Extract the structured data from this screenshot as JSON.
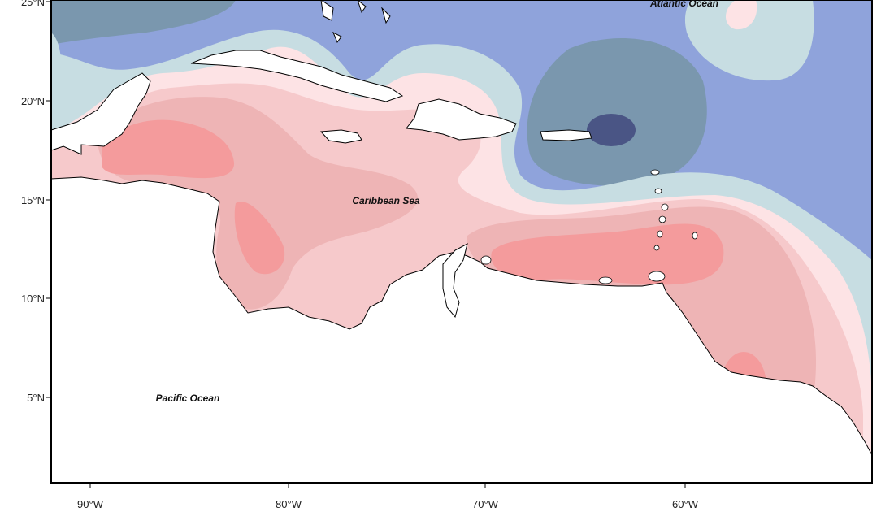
{
  "map": {
    "ocean_labels": {
      "atlantic": "Atlantic Ocean",
      "caribbean": "Caribbean Sea",
      "pacific": "Pacific Ocean"
    },
    "lat_ticks": [
      "25°N",
      "20°N",
      "15°N",
      "10°N",
      "5°N"
    ],
    "lon_ticks": [
      "90°W",
      "80°W",
      "70°W",
      "60°W"
    ],
    "colors": {
      "deep_negative": "#4a5585",
      "negative": "#7a97ae",
      "weak_negative": "#8fa3db",
      "near_zero_cool": "#c7dde2",
      "near_zero_warm": "#fde3e5",
      "weak_positive": "#f6c9cb",
      "positive": "#eeb4b5",
      "strong_positive": "#f49b9c",
      "land": "#ffffff",
      "coastline": "#000000"
    }
  }
}
